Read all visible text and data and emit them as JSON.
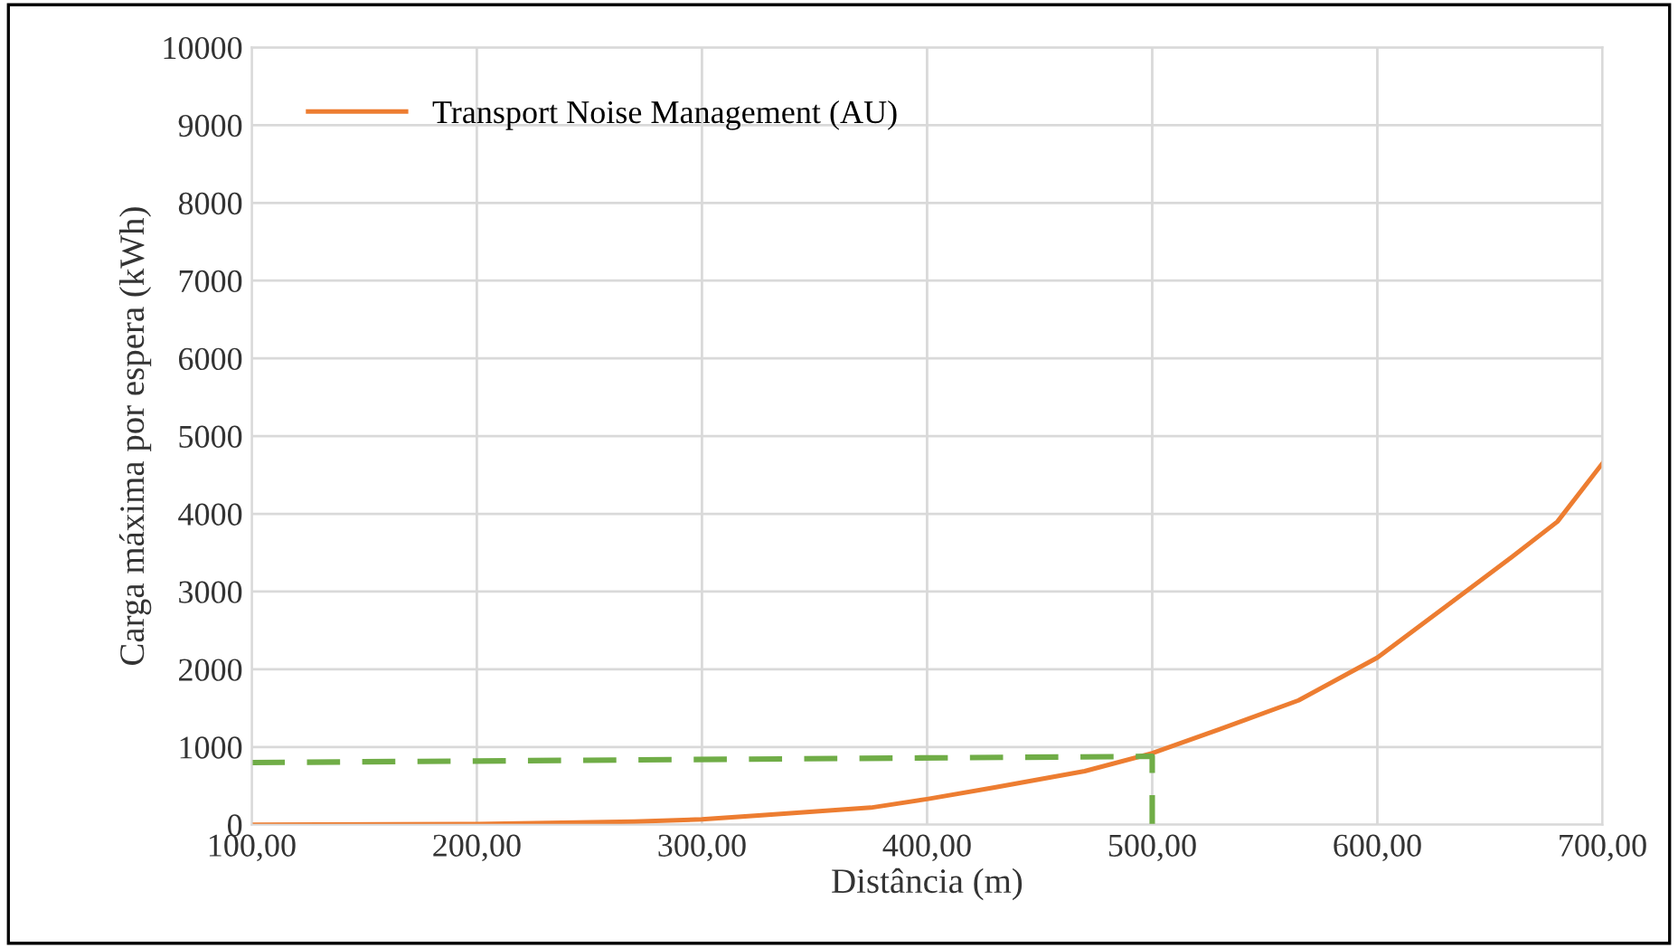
{
  "chart_data": {
    "type": "line",
    "xlabel": "Distância (m)",
    "ylabel": "Carga máxima por espera (kWh)",
    "series": [
      {
        "name": "Transport Noise Management (AU)",
        "color": "#ed7d31",
        "x": [
          100,
          200,
          270,
          300,
          325,
          375,
          400,
          430,
          470,
          500,
          530,
          565,
          600,
          630,
          660,
          680,
          700
        ],
        "values": [
          0,
          10,
          40,
          70,
          120,
          220,
          330,
          480,
          690,
          920,
          1230,
          1600,
          2150,
          2800,
          3450,
          3900,
          4650
        ]
      },
      {
        "color": "#70ad47",
        "line_style": "dashed",
        "x": [
          100,
          500,
          500
        ],
        "values": [
          800,
          880,
          0
        ]
      }
    ],
    "xlim": [
      100,
      700
    ],
    "ylim": [
      0,
      10000
    ],
    "xticks": [
      {
        "value": 100,
        "label": "100,00"
      },
      {
        "value": 200,
        "label": "200,00"
      },
      {
        "value": 300,
        "label": "300,00"
      },
      {
        "value": 400,
        "label": "400,00"
      },
      {
        "value": 500,
        "label": "500,00"
      },
      {
        "value": 600,
        "label": "600,00"
      },
      {
        "value": 700,
        "label": "700,00"
      }
    ],
    "yticks": [
      0,
      1000,
      2000,
      3000,
      4000,
      5000,
      6000,
      7000,
      8000,
      9000,
      10000
    ],
    "grid": true,
    "legend": "top left",
    "marker": "none",
    "line_style": "solid"
  }
}
